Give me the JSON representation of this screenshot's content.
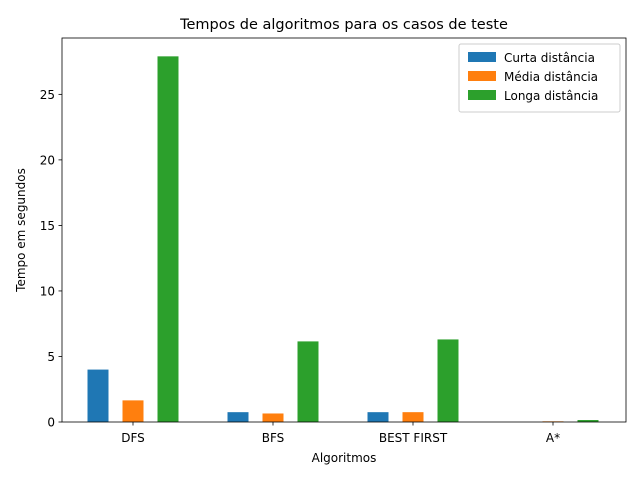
{
  "chart_data": {
    "type": "bar",
    "title": "Tempos de algoritmos para os casos de teste",
    "xlabel": "Algoritmos",
    "ylabel": "Tempo em segundos",
    "categories": [
      "DFS",
      "BFS",
      "BEST FIRST",
      "A*"
    ],
    "series": [
      {
        "name": "Curta distância",
        "color": "#1f77b4",
        "values": [
          4.0,
          0.75,
          0.75,
          0.0
        ]
      },
      {
        "name": "Média distância",
        "color": "#ff7f0e",
        "values": [
          1.65,
          0.65,
          0.75,
          0.05
        ]
      },
      {
        "name": "Longa distância",
        "color": "#2ca02c",
        "values": [
          27.9,
          6.15,
          6.3,
          0.15
        ]
      }
    ],
    "yticks": [
      0,
      5,
      10,
      15,
      20,
      25
    ],
    "ylim": [
      0,
      29.3
    ],
    "grid": false,
    "legend_position": "upper right"
  }
}
